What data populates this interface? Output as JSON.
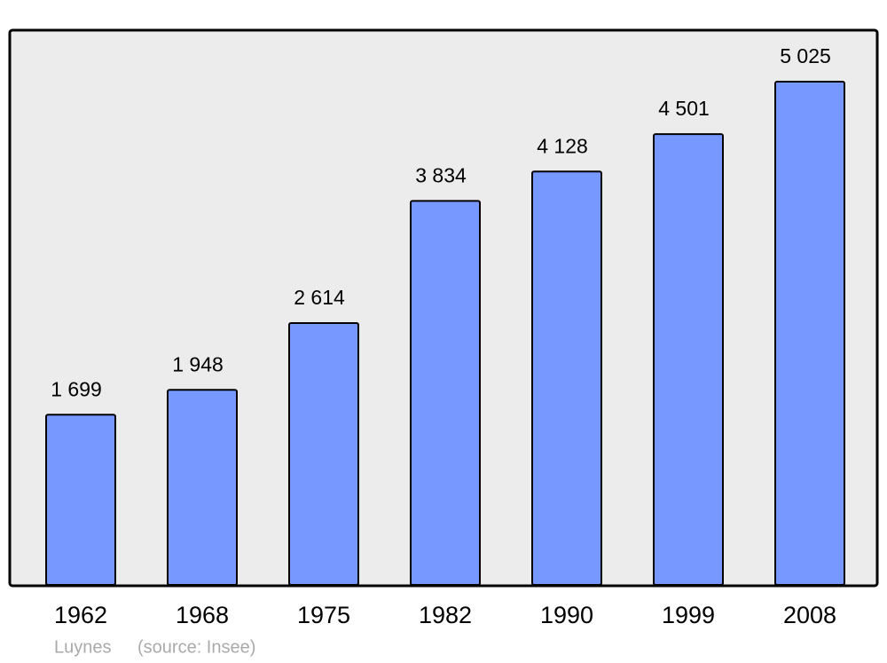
{
  "chart_data": {
    "type": "bar",
    "categories": [
      "1962",
      "1968",
      "1975",
      "1982",
      "1990",
      "1999",
      "2008"
    ],
    "values": [
      1699,
      1948,
      2614,
      3834,
      4128,
      4501,
      5025
    ],
    "value_labels": [
      "1 699",
      "1 948",
      "2 614",
      "3 834",
      "4 128",
      "4 501",
      "5 025"
    ],
    "color": "#7799ff",
    "place": "Luynes",
    "source": "(source: Insee)"
  }
}
